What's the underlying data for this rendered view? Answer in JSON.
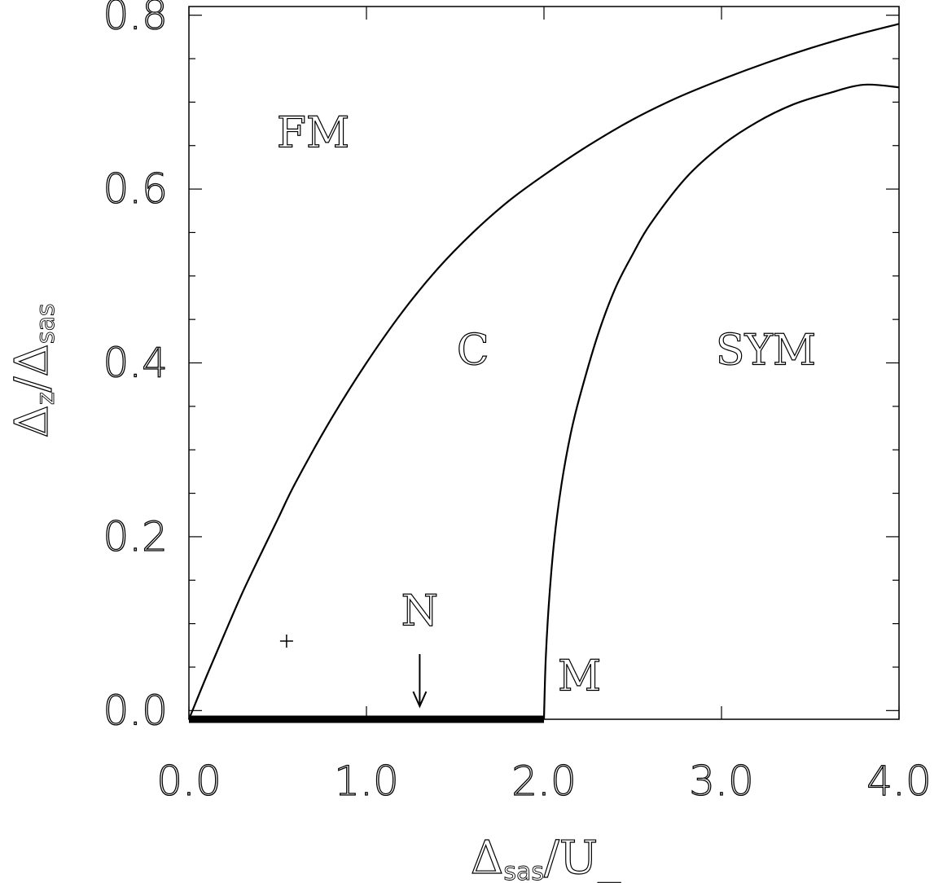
{
  "chart_data": {
    "type": "line",
    "xlabel": {
      "main": "Δ",
      "sub": "sas",
      "rest": "/U_"
    },
    "ylabel": {
      "main": "Δ",
      "sub": "z",
      "mid": "/Δ",
      "sub2": "sas"
    },
    "xlim": [
      0.0,
      4.0
    ],
    "ylim": [
      -0.01,
      0.81
    ],
    "x_ticks": [
      0.0,
      1.0,
      2.0,
      3.0,
      4.0
    ],
    "x_tick_labels": [
      "0.0",
      "1.0",
      "2.0",
      "3.0",
      "4.0"
    ],
    "y_ticks": [
      0.0,
      0.2,
      0.4,
      0.6,
      0.8
    ],
    "y_tick_labels": [
      "0.0",
      "0.2",
      "0.4",
      "0.6",
      "0.8"
    ],
    "series": [
      {
        "x": [
          0.0,
          0.1,
          0.2,
          0.3,
          0.4,
          0.5,
          0.6,
          0.8,
          1.0,
          1.2,
          1.4,
          1.6,
          1.8,
          2.0,
          2.25,
          2.5,
          2.75,
          3.0,
          3.25,
          3.5,
          3.75,
          4.0
        ],
        "y": [
          -0.01,
          0.04,
          0.088,
          0.135,
          0.178,
          0.22,
          0.262,
          0.335,
          0.4,
          0.458,
          0.508,
          0.55,
          0.586,
          0.616,
          0.65,
          0.68,
          0.705,
          0.726,
          0.745,
          0.762,
          0.777,
          0.79
        ]
      },
      {
        "x": [
          2.0,
          2.01,
          2.03,
          2.06,
          2.1,
          2.15,
          2.2,
          2.3,
          2.4,
          2.5,
          2.6,
          2.8,
          3.0,
          3.2,
          3.4,
          3.6,
          3.8,
          4.0
        ],
        "y": [
          -0.01,
          0.06,
          0.13,
          0.2,
          0.262,
          0.318,
          0.36,
          0.43,
          0.485,
          0.525,
          0.56,
          0.613,
          0.65,
          0.677,
          0.697,
          0.71,
          0.72,
          0.717
        ]
      }
    ],
    "thick_segment": {
      "x": [
        0.0,
        2.0
      ],
      "y": [
        -0.01,
        -0.01
      ]
    },
    "marker": {
      "x": 0.55,
      "y": 0.08,
      "symbol": "+"
    },
    "arrow": {
      "x": 1.3,
      "y_start": 0.065,
      "y_end": 0.005
    },
    "annotations": [
      {
        "text": "FM",
        "x": 0.7,
        "y": 0.665
      },
      {
        "text": "C",
        "x": 1.6,
        "y": 0.415
      },
      {
        "text": "SYM",
        "x": 3.25,
        "y": 0.415
      },
      {
        "text": "N",
        "x": 1.3,
        "y": 0.115
      },
      {
        "text": "M",
        "x": 2.2,
        "y": 0.04
      }
    ]
  }
}
